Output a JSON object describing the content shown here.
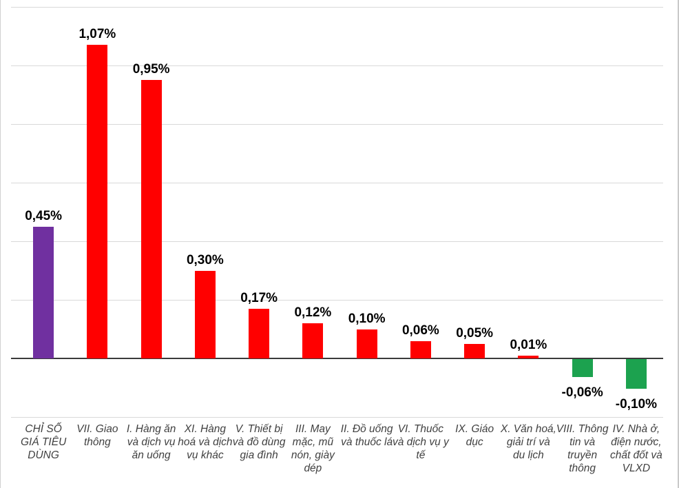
{
  "chart_data": {
    "type": "bar",
    "title": "",
    "categories": [
      "CHỈ SỐ GIÁ TIÊU DÙNG",
      "VII. Giao thông",
      "I. Hàng ăn và dịch vụ ăn uống",
      "XI. Hàng hoá và dịch vụ khác",
      "V. Thiết bị và đồ dùng gia đình",
      "III. May mặc, mũ nón, giày dép",
      "II. Đồ uống và thuốc lá",
      "VI. Thuốc và dịch vụ y tế",
      "IX. Giáo dục",
      "X. Văn hoá, giải trí và du lịch",
      "VIII. Thông tin và truyền thông",
      "IV. Nhà ở, điện nước, chất đốt và VLXD"
    ],
    "values": [
      0.45,
      1.07,
      0.95,
      0.3,
      0.17,
      0.12,
      0.1,
      0.06,
      0.05,
      0.01,
      -0.06,
      -0.1
    ],
    "value_labels": [
      "0,45%",
      "1,07%",
      "0,95%",
      "0,30%",
      "0,17%",
      "0,12%",
      "0,10%",
      "0,06%",
      "0,05%",
      "0,01%",
      "-0,06%",
      "-0,10%"
    ],
    "bar_colors": [
      "#7030A0",
      "#FF0000",
      "#FF0000",
      "#FF0000",
      "#FF0000",
      "#FF0000",
      "#FF0000",
      "#FF0000",
      "#FF0000",
      "#FF0000",
      "#1CA24F",
      "#1CA24F"
    ],
    "xlabel": "",
    "ylabel": "",
    "ylim": [
      -0.2,
      1.2
    ],
    "grid": true,
    "gridline_step": 0.2,
    "legend": "none"
  },
  "colors": {
    "highlight_bar": "#7030A0",
    "positive_bar": "#FF0000",
    "negative_bar": "#1CA24F",
    "gridline": "#D9D9D9",
    "axis": "#3A3A3A",
    "value_text": "#000000",
    "category_text": "#404040",
    "background": "#FFFFFF"
  }
}
